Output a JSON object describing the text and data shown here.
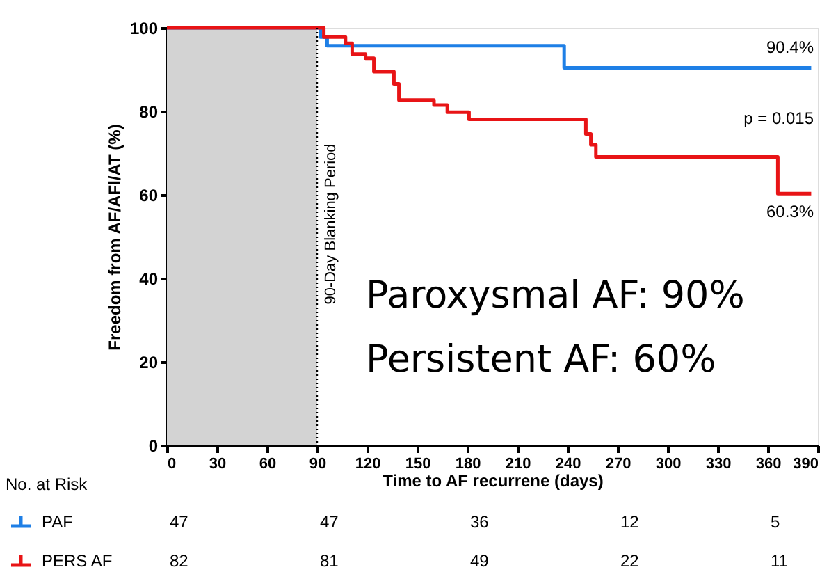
{
  "chart_data": {
    "type": "step",
    "xlabel": "Time to AF recurrene (days)",
    "ylabel": "Freedom from AF/AFl/AT (%)",
    "xlim": [
      0,
      390
    ],
    "xticks": [
      0,
      30,
      60,
      90,
      120,
      150,
      180,
      210,
      240,
      270,
      300,
      330,
      360,
      390
    ],
    "ylim": [
      0,
      100
    ],
    "yticks": [
      0,
      20,
      40,
      60,
      80,
      100
    ],
    "grid": false,
    "legend": "bottom left",
    "line_style": "solid",
    "series": [
      {
        "name": "PAF",
        "color": "#1e7fe6",
        "x": [
          0,
          92,
          96,
          238,
          386
        ],
        "values": [
          100,
          97.8,
          95.7,
          90.4,
          90.4
        ]
      },
      {
        "name": "PERS AF",
        "color": "#e81416",
        "x": [
          0,
          94,
          107,
          111,
          119,
          124,
          136,
          139,
          160,
          168,
          181,
          251,
          254,
          257,
          366,
          386
        ],
        "values": [
          100,
          97.8,
          96.3,
          93.7,
          92.7,
          89.5,
          86.6,
          82.7,
          81.5,
          79.8,
          78.1,
          74.6,
          72.0,
          69.1,
          60.3,
          60.3
        ]
      }
    ],
    "bands": [
      {
        "axis": "x",
        "from": 0,
        "to": 90,
        "color": "#d3d3d3"
      }
    ],
    "ref_lines": [
      {
        "axis": "x",
        "value": 90,
        "label": "90-Day Blanking Period",
        "color": "#000000",
        "line_style": "dotted"
      }
    ],
    "annotations": [
      "90.4%",
      "p = 0.015",
      "60.3%",
      "Paroxysmal AF: 90%",
      "Persistent AF: 60%",
      "No. at Risk",
      "47",
      "47",
      "36",
      "12",
      "5",
      "82",
      "81",
      "49",
      "22",
      "11"
    ]
  }
}
